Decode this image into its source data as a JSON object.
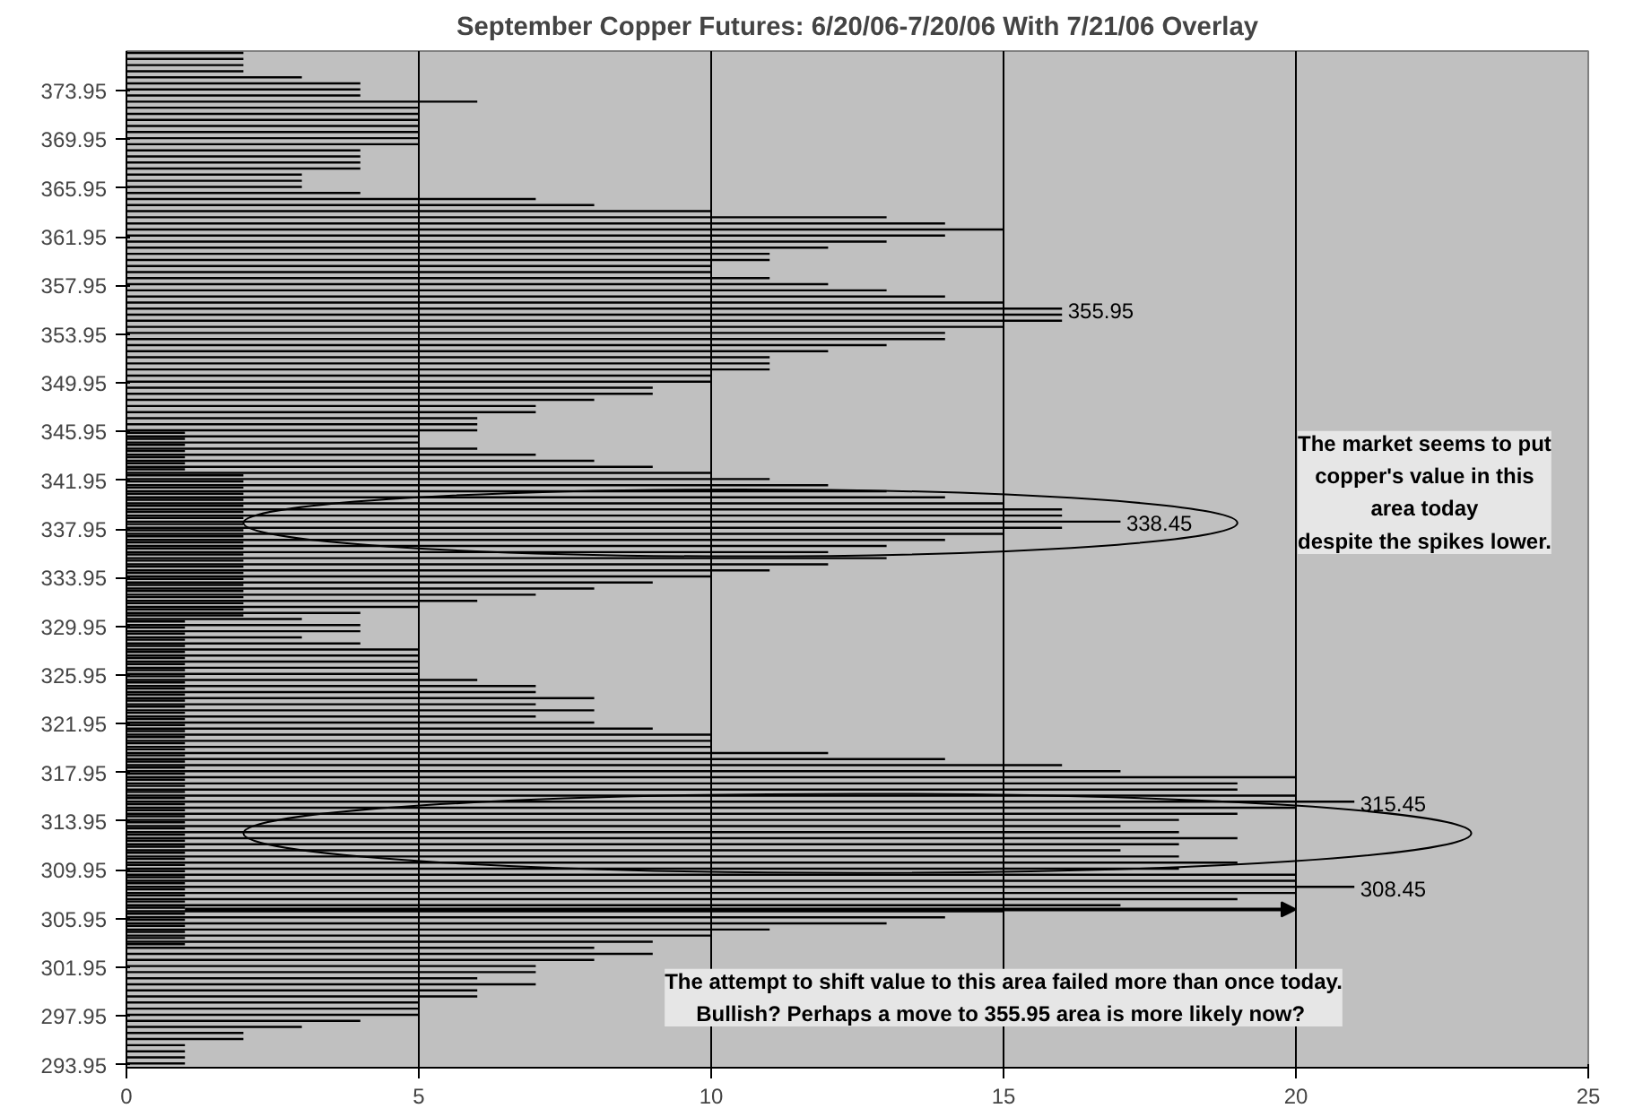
{
  "chart_data": {
    "type": "bar",
    "orientation": "horizontal",
    "title": "September Copper Futures: 6/20/06-7/20/06 With 7/21/06 Overlay",
    "categories": [
      null,
      null,
      null,
      null,
      null,
      null,
      "373.95",
      null,
      null,
      null,
      null,
      null,
      null,
      null,
      "369.95",
      null,
      null,
      null,
      null,
      null,
      null,
      null,
      "365.95",
      null,
      null,
      null,
      null,
      null,
      null,
      null,
      "361.95",
      null,
      null,
      null,
      null,
      null,
      null,
      null,
      "357.95",
      null,
      null,
      null,
      null,
      null,
      null,
      null,
      "353.95",
      null,
      null,
      null,
      null,
      null,
      null,
      null,
      "349.95",
      null,
      null,
      null,
      null,
      null,
      null,
      null,
      "345.95",
      null,
      null,
      null,
      null,
      null,
      null,
      null,
      "341.95",
      null,
      null,
      null,
      null,
      null,
      null,
      null,
      "337.95",
      null,
      null,
      null,
      null,
      null,
      null,
      null,
      "333.95",
      null,
      null,
      null,
      null,
      null,
      null,
      null,
      "329.95",
      null,
      null,
      null,
      null,
      null,
      null,
      null,
      "325.95",
      null,
      null,
      null,
      null,
      null,
      null,
      null,
      "321.95",
      null,
      null,
      null,
      null,
      null,
      null,
      null,
      "317.95",
      null,
      null,
      null,
      null,
      null,
      null,
      null,
      "313.95",
      null,
      null,
      null,
      null,
      null,
      null,
      null,
      "309.95",
      null,
      null,
      null,
      null,
      null,
      null,
      null,
      "305.95",
      null,
      null,
      null,
      null,
      null,
      null,
      null,
      "301.95",
      null,
      null,
      null,
      null,
      null,
      null,
      null,
      "297.95",
      null,
      null,
      null,
      null,
      null,
      null,
      null,
      "293.95"
    ],
    "series": [
      {
        "color": "#000000",
        "values": [
          2,
          2,
          2,
          2,
          3,
          4,
          4,
          4,
          6,
          5,
          5,
          5,
          5,
          5,
          5,
          5,
          4,
          4,
          4,
          4,
          3,
          3,
          3,
          4,
          7,
          8,
          10,
          13,
          14,
          15,
          14,
          13,
          12,
          11,
          11,
          10,
          10,
          11,
          12,
          13,
          14,
          15,
          16,
          16,
          16,
          15,
          14,
          14,
          13,
          12,
          11,
          11,
          11,
          10,
          10,
          9,
          9,
          8,
          7,
          7,
          6,
          6,
          6,
          5,
          5,
          6,
          7,
          8,
          9,
          10,
          11,
          12,
          13,
          14,
          15,
          16,
          16,
          17,
          16,
          15,
          14,
          13,
          12,
          13,
          12,
          11,
          10,
          9,
          8,
          7,
          6,
          5,
          4,
          3,
          4,
          4,
          3,
          4,
          5,
          5,
          5,
          5,
          5,
          6,
          7,
          7,
          8,
          7,
          8,
          7,
          8,
          9,
          10,
          10,
          10,
          12,
          14,
          16,
          17,
          20,
          19,
          19,
          20,
          21,
          20,
          19,
          18,
          17,
          18,
          19,
          18,
          17,
          18,
          19,
          18,
          20,
          20,
          21,
          20,
          19,
          17,
          15,
          14,
          13,
          11,
          10,
          9,
          8,
          9,
          8,
          7,
          7,
          6,
          7,
          6,
          6,
          5,
          5,
          5,
          4,
          3,
          2,
          2,
          1,
          1,
          1,
          1
        ]
      },
      {
        "color": "#000000",
        "values": [
          null,
          null,
          null,
          null,
          null,
          null,
          null,
          null,
          null,
          null,
          null,
          null,
          null,
          null,
          null,
          null,
          null,
          null,
          null,
          null,
          null,
          null,
          null,
          null,
          null,
          null,
          null,
          null,
          null,
          null,
          null,
          null,
          null,
          null,
          null,
          null,
          null,
          null,
          null,
          null,
          null,
          null,
          null,
          null,
          null,
          null,
          null,
          null,
          null,
          null,
          null,
          null,
          null,
          null,
          null,
          null,
          null,
          null,
          null,
          null,
          null,
          null,
          1,
          1,
          1,
          1,
          1,
          1,
          1,
          2,
          2,
          2,
          2,
          2,
          2,
          2,
          2,
          2,
          2,
          2,
          2,
          2,
          2,
          2,
          2,
          2,
          2,
          2,
          2,
          2,
          2,
          2,
          2,
          1,
          1,
          1,
          1,
          1,
          1,
          1,
          1,
          1,
          1,
          1,
          1,
          1,
          1,
          1,
          1,
          1,
          1,
          1,
          1,
          1,
          1,
          1,
          1,
          1,
          1,
          1,
          1,
          1,
          1,
          1,
          1,
          1,
          1,
          1,
          1,
          1,
          1,
          1,
          1,
          1,
          1,
          1,
          1,
          1,
          1,
          1,
          1,
          1,
          1,
          1,
          1,
          1,
          1,
          null,
          null,
          null,
          null,
          null,
          null,
          null,
          null,
          null,
          null,
          null,
          null,
          null,
          null,
          null,
          null,
          null,
          null,
          null,
          null
        ]
      }
    ],
    "xlim": [
      0,
      25
    ],
    "xticks": [
      0,
      5,
      10,
      15,
      20,
      25
    ],
    "grid": "x",
    "annotations": [
      "355.95",
      "338.45",
      "315.45",
      "308.45",
      "The market seems to put copper's value in this area today\ndespite the spikes lower.",
      "The attempt to shift value to this area failed more than once today.\nBullish?  Perhaps a move to 355.95 area is more likely now?"
    ]
  }
}
